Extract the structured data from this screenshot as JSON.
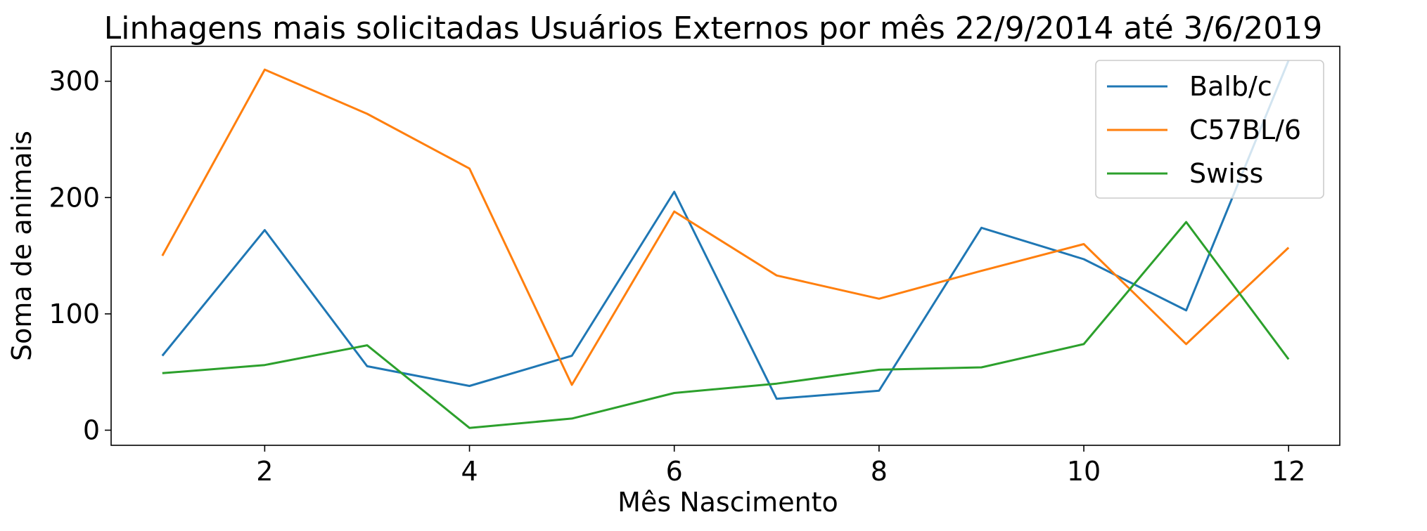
{
  "chart_data": {
    "type": "line",
    "title": "Linhagens mais solicitadas Usuários Externos por mês 22/9/2014 até 3/6/2019",
    "xlabel": "Mês Nascimento",
    "ylabel": "Soma de animais",
    "x": [
      1,
      2,
      3,
      4,
      5,
      6,
      7,
      8,
      9,
      10,
      11,
      12
    ],
    "xlim": [
      0.5,
      12.5
    ],
    "ylim": [
      -13,
      330
    ],
    "xticks": [
      2,
      4,
      6,
      8,
      10,
      12
    ],
    "yticks": [
      0,
      100,
      200,
      300
    ],
    "xtick_labels": [
      "2",
      "4",
      "6",
      "8",
      "10",
      "12"
    ],
    "ytick_labels": [
      "0",
      "100",
      "200",
      "300"
    ],
    "grid": false,
    "legend_position": "top-right",
    "series": [
      {
        "name": "Balb/c",
        "color": "#1f77b4",
        "values": [
          64,
          172,
          55,
          38,
          64,
          205,
          27,
          34,
          174,
          147,
          103,
          318
        ]
      },
      {
        "name": "C57BL/6",
        "color": "#ff7f0e",
        "values": [
          150,
          310,
          272,
          225,
          39,
          188,
          133,
          113,
          137,
          160,
          74,
          157
        ]
      },
      {
        "name": "Swiss",
        "color": "#2ca02c",
        "values": [
          49,
          56,
          73,
          2,
          10,
          32,
          40,
          52,
          54,
          74,
          179,
          61
        ]
      }
    ]
  }
}
